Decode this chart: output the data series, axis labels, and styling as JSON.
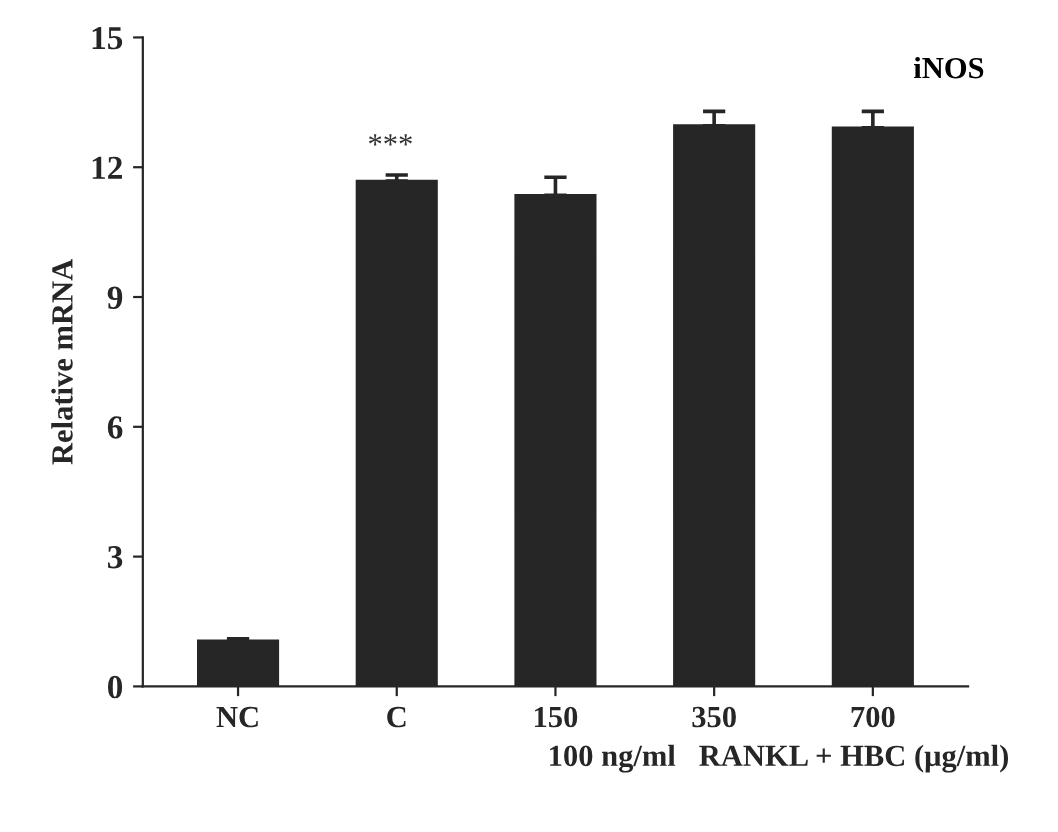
{
  "chart_data": {
    "type": "bar",
    "categories": [
      "NC",
      "C",
      "150",
      "350",
      "700"
    ],
    "values": [
      1.05,
      11.68,
      11.35,
      12.96,
      12.91
    ],
    "errors": [
      0.05,
      0.14,
      0.42,
      0.33,
      0.38
    ],
    "color": "#262626",
    "ylabel": "Relative mRNA",
    "xlabel": "100 ng/ml   RANKL + HBC (μg/ml)",
    "ylim": [
      0,
      15
    ],
    "yticks": [
      0,
      3,
      6,
      9,
      12,
      15
    ],
    "grid": false,
    "legend": false,
    "annotations": [
      "iNOS",
      "***"
    ]
  }
}
